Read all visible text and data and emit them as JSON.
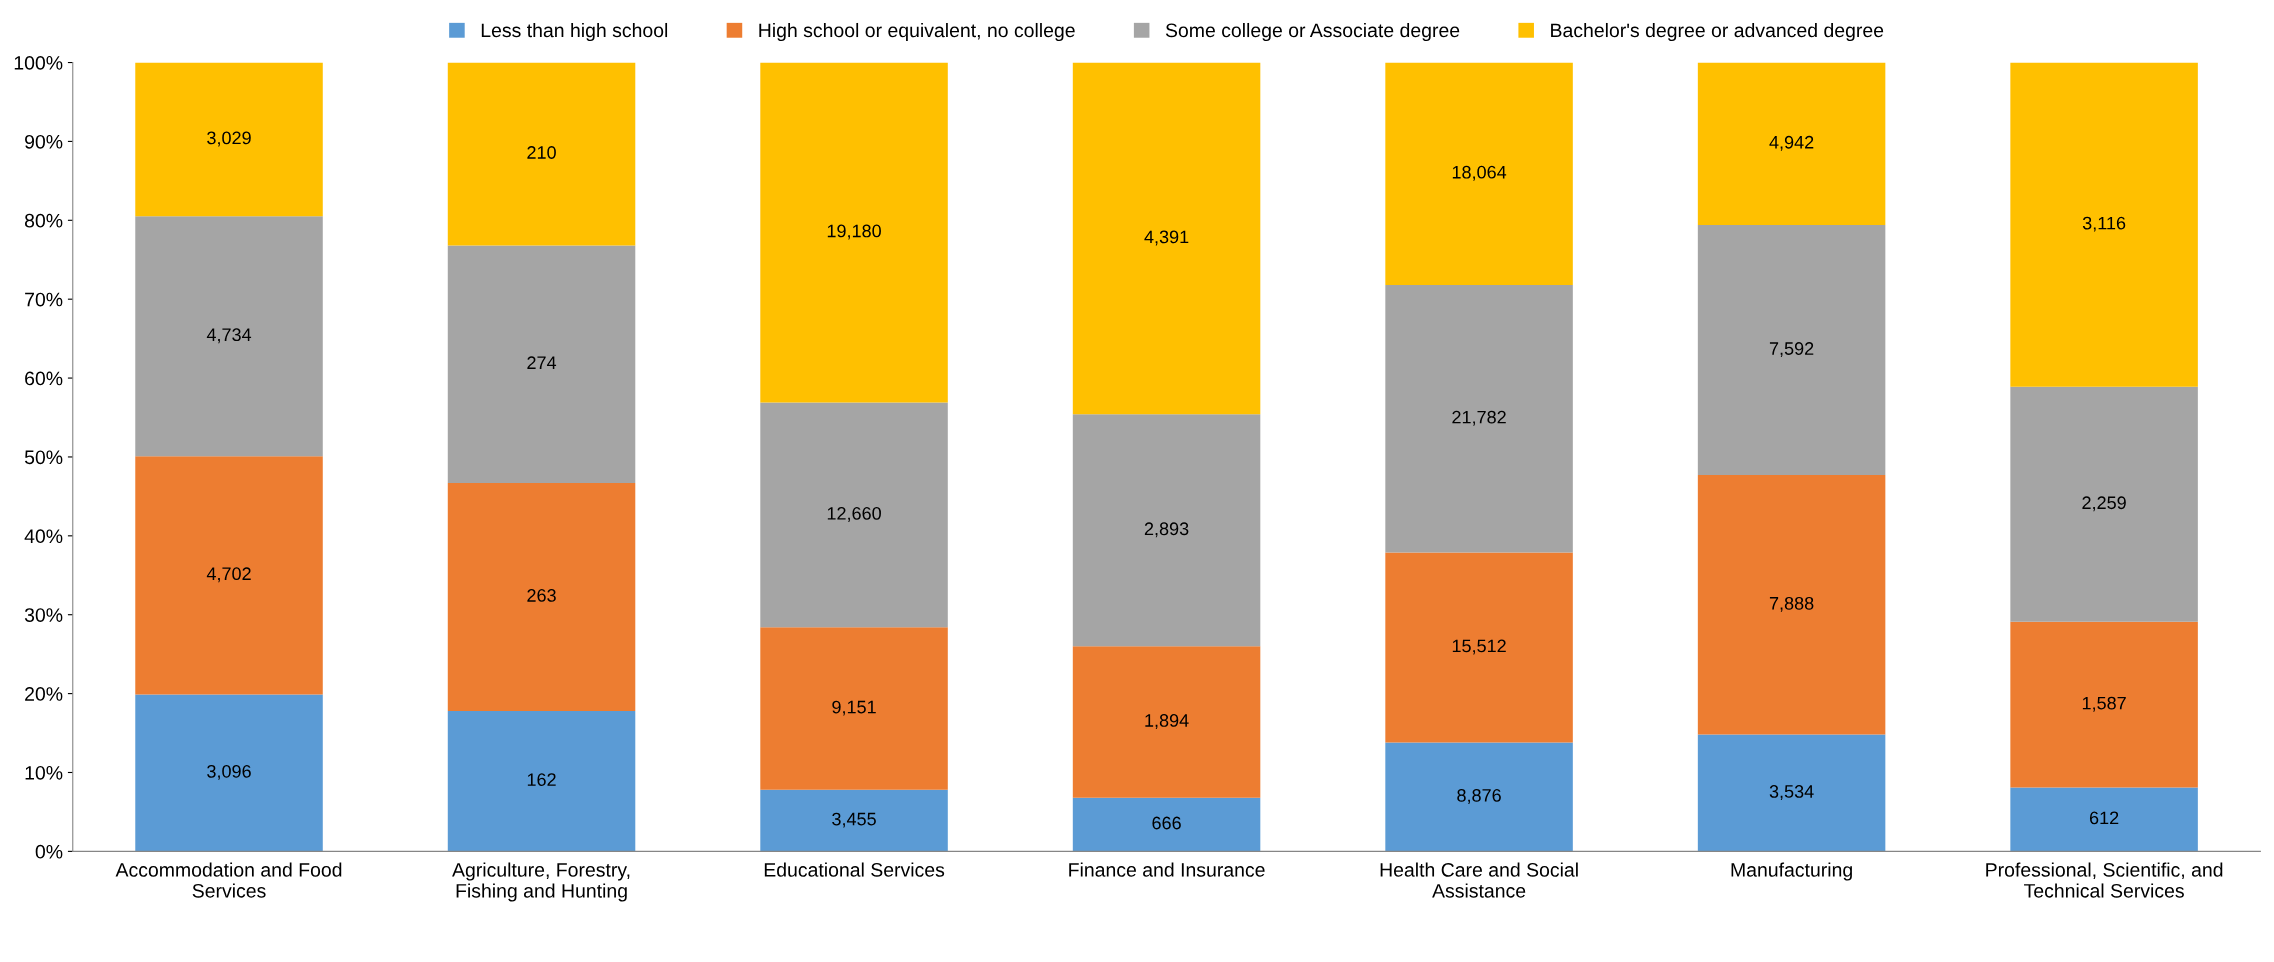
{
  "chart_data": {
    "type": "bar",
    "stacked": true,
    "categories": [
      "Accommodation and Food\nServices",
      "Agriculture, Forestry,\nFishing and Hunting",
      "Educational Services",
      "Finance and Insurance",
      "Health Care and Social\nAssistance",
      "Manufacturing",
      "Professional, Scientific, and\nTechnical Services"
    ],
    "series": [
      {
        "name": "Less than high school",
        "color": "#5b9bd5",
        "values": [
          19.9,
          17.8,
          7.8,
          6.8,
          13.8,
          14.8,
          8.1
        ]
      },
      {
        "name": "High school or equivalent, no college",
        "color": "#ed7d31",
        "values": [
          30.2,
          28.9,
          20.6,
          19.2,
          24.1,
          32.9,
          21.0
        ]
      },
      {
        "name": "Some college or Associate degree",
        "color": "#a5a5a5",
        "values": [
          30.4,
          30.1,
          28.5,
          29.4,
          33.9,
          31.7,
          29.8
        ]
      },
      {
        "name": "Bachelor's degree or advanced degree",
        "color": "#ffc000",
        "values": [
          19.5,
          23.2,
          43.1,
          44.6,
          28.2,
          20.6,
          41.1
        ]
      }
    ],
    "annotations": [
      "3,096",
      "4,702",
      "4,734",
      "3,029",
      "162",
      "263",
      "274",
      "210",
      "3,455",
      "9,151",
      "12,660",
      "19,180",
      "666",
      "1,894",
      "2,893",
      "4,391",
      "8,876",
      "15,512",
      "21,782",
      "18,064",
      "3,534",
      "7,888",
      "7,592",
      "4,942",
      "612",
      "1,587",
      "2,259",
      "3,116"
    ],
    "ylim": [
      0,
      100
    ],
    "yticks": [
      {
        "value": 0,
        "label": "0%"
      },
      {
        "value": 10,
        "label": "10%"
      },
      {
        "value": 20,
        "label": "20%"
      },
      {
        "value": 30,
        "label": "30%"
      },
      {
        "value": 40,
        "label": "40%"
      },
      {
        "value": 50,
        "label": "50%"
      },
      {
        "value": 60,
        "label": "60%"
      },
      {
        "value": 70,
        "label": "70%"
      },
      {
        "value": 80,
        "label": "80%"
      },
      {
        "value": 90,
        "label": "90%"
      },
      {
        "value": 100,
        "label": "100%"
      }
    ],
    "grid": false,
    "legend": "top"
  }
}
